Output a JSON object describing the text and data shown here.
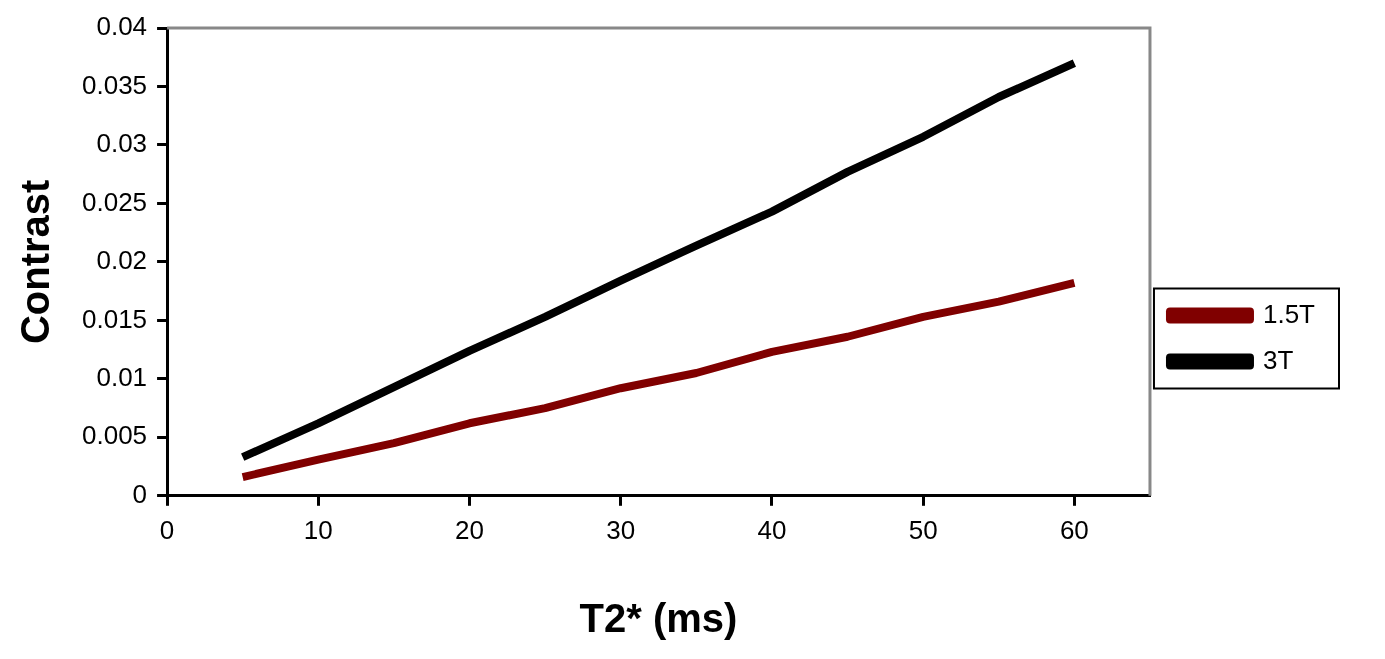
{
  "chart_data": {
    "type": "line",
    "xlabel": "T2* (ms)",
    "ylabel": "Contrast",
    "x": [
      5,
      10,
      15,
      20,
      25,
      30,
      35,
      40,
      45,
      50,
      55,
      60
    ],
    "series": [
      {
        "name": "1.5T",
        "color": "#800000",
        "values": [
          0.0016,
          0.0031,
          0.0045,
          0.0062,
          0.0075,
          0.0092,
          0.0105,
          0.0123,
          0.0136,
          0.0153,
          0.0166,
          0.0182
        ]
      },
      {
        "name": "3T",
        "color": "#000000",
        "values": [
          0.0033,
          0.0062,
          0.0093,
          0.0124,
          0.0153,
          0.0184,
          0.0214,
          0.0243,
          0.0277,
          0.0307,
          0.0341,
          0.037
        ]
      }
    ],
    "xlim": [
      0,
      65
    ],
    "xticks": [
      0,
      10,
      20,
      30,
      40,
      50,
      60
    ],
    "ylim": [
      0,
      0.04
    ],
    "yticks": [
      0,
      0.005,
      0.01,
      0.015,
      0.02,
      0.025,
      0.03,
      0.035,
      0.04
    ],
    "grid": false,
    "legend": "right",
    "marker": "none",
    "line_style": "solid"
  }
}
